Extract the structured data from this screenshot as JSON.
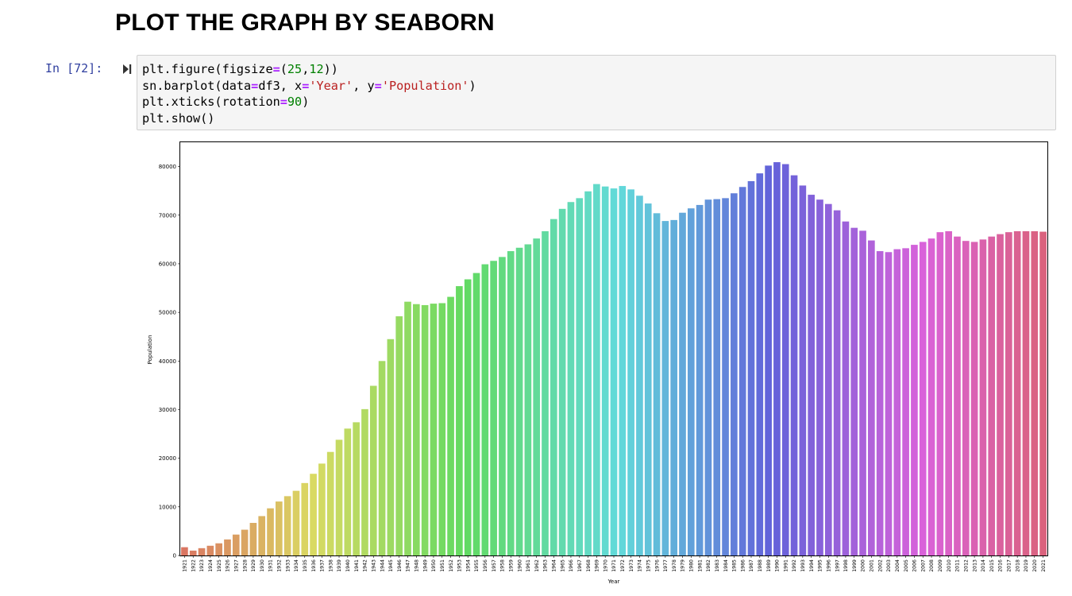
{
  "heading": "PLOT THE GRAPH BY SEABORN",
  "cell": {
    "prompt": "In [72]:",
    "code": [
      [
        {
          "t": "plt.figure(figsize"
        },
        {
          "t": "=",
          "c": "op"
        },
        {
          "t": "("
        },
        {
          "t": "25",
          "c": "num"
        },
        {
          "t": ","
        },
        {
          "t": "12",
          "c": "num"
        },
        {
          "t": "))"
        }
      ],
      [
        {
          "t": "sn.barplot(data"
        },
        {
          "t": "=",
          "c": "op"
        },
        {
          "t": "df3, x"
        },
        {
          "t": "=",
          "c": "op"
        },
        {
          "t": "'Year'",
          "c": "str"
        },
        {
          "t": ", y"
        },
        {
          "t": "=",
          "c": "op"
        },
        {
          "t": "'Population'",
          "c": "str"
        },
        {
          "t": ")"
        }
      ],
      [
        {
          "t": "plt.xticks(rotation"
        },
        {
          "t": "=",
          "c": "op"
        },
        {
          "t": "90",
          "c": "num"
        },
        {
          "t": ")"
        }
      ],
      [
        {
          "t": "plt.show()"
        }
      ]
    ]
  },
  "chart_data": {
    "type": "bar",
    "xlabel": "Year",
    "ylabel": "Population",
    "ylim": [
      0,
      85000
    ],
    "yticks": [
      0,
      10000,
      20000,
      30000,
      40000,
      50000,
      60000,
      70000,
      80000
    ],
    "palette": "husl",
    "grid": false,
    "categories": [
      "1921",
      "1922",
      "1923",
      "1924",
      "1925",
      "1926",
      "1927",
      "1928",
      "1929",
      "1930",
      "1931",
      "1932",
      "1933",
      "1934",
      "1935",
      "1936",
      "1937",
      "1938",
      "1939",
      "1940",
      "1941",
      "1942",
      "1943",
      "1944",
      "1945",
      "1946",
      "1947",
      "1948",
      "1949",
      "1950",
      "1951",
      "1952",
      "1953",
      "1954",
      "1955",
      "1956",
      "1957",
      "1958",
      "1959",
      "1960",
      "1961",
      "1962",
      "1963",
      "1964",
      "1965",
      "1966",
      "1967",
      "1968",
      "1969",
      "1970",
      "1971",
      "1972",
      "1973",
      "1974",
      "1975",
      "1976",
      "1977",
      "1978",
      "1979",
      "1980",
      "1981",
      "1982",
      "1983",
      "1984",
      "1985",
      "1986",
      "1987",
      "1988",
      "1989",
      "1990",
      "1991",
      "1992",
      "1993",
      "1994",
      "1995",
      "1996",
      "1997",
      "1998",
      "1999",
      "2000",
      "2001",
      "2002",
      "2003",
      "2004",
      "2005",
      "2006",
      "2007",
      "2008",
      "2009",
      "2010",
      "2011",
      "2012",
      "2013",
      "2014",
      "2015",
      "2016",
      "2017",
      "2018",
      "2019",
      "2020",
      "2021"
    ],
    "values": [
      1700,
      1000,
      1500,
      2000,
      2500,
      3300,
      4300,
      5300,
      6700,
      8100,
      9700,
      11100,
      12200,
      13300,
      14900,
      16800,
      18900,
      21300,
      23800,
      26100,
      27400,
      30100,
      34900,
      40000,
      44500,
      49200,
      52200,
      51700,
      51500,
      51800,
      51900,
      53200,
      55400,
      56800,
      58100,
      59900,
      60600,
      61400,
      62600,
      63300,
      64000,
      65200,
      66700,
      69200,
      71300,
      72700,
      73500,
      74900,
      76400,
      75900,
      75500,
      76000,
      75300,
      74000,
      72400,
      70400,
      68800,
      69000,
      70500,
      71400,
      72100,
      73200,
      73300,
      73500,
      74500,
      75800,
      77000,
      78600,
      80200,
      80900,
      80500,
      78200,
      76100,
      74200,
      73200,
      72300,
      71000,
      68700,
      67400,
      66800,
      64800,
      62600,
      62400,
      63000,
      63200,
      63900,
      64500,
      65200,
      66500,
      66700,
      65600,
      64700,
      64500,
      65000,
      65600,
      66100,
      66500,
      66700,
      66700,
      66700,
      66600
    ]
  }
}
